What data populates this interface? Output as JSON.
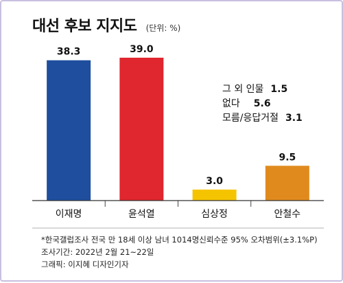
{
  "title": "대선 후보 지지도",
  "unit": "(단위: %)",
  "chart_data": {
    "type": "bar",
    "categories": [
      "이재명",
      "윤석열",
      "심상정",
      "안철수"
    ],
    "values": [
      38.3,
      39.0,
      3.0,
      9.5
    ],
    "value_labels": [
      "38.3",
      "39.0",
      "3.0",
      "9.5"
    ],
    "colors": [
      "#1f4e9e",
      "#e0262e",
      "#f5c400",
      "#e08a1e"
    ],
    "title": "대선 후보 지지도",
    "xlabel": "",
    "ylabel": "",
    "ylim": [
      0,
      39.0
    ],
    "grid": false,
    "legend": "none"
  },
  "others": [
    {
      "label": "그 외 인물",
      "value": "1.5"
    },
    {
      "label": "없다",
      "value": "5.6"
    },
    {
      "label": "모름/응답거절",
      "value": "3.1"
    }
  ],
  "footnotes": [
    "*한국갤럽조사 전국 만 18세 이상 남녀 1014명신뢰수준 95% 오차범위(±3.1%P)",
    "조사기간: 2022년 2월 21~22일",
    "그래픽: 이지혜 디자인기자"
  ]
}
